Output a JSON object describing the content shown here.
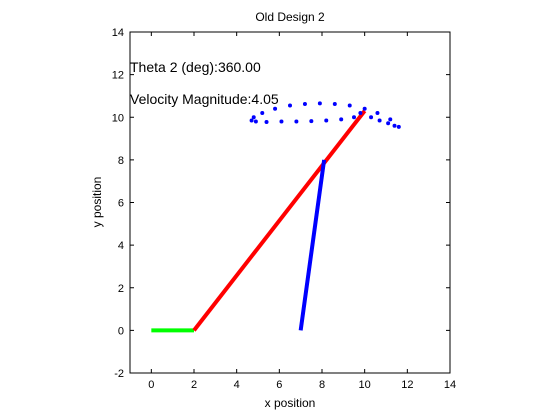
{
  "chart_data": {
    "type": "line",
    "title": "Old Design 2",
    "xlabel": "x position",
    "ylabel": "y position",
    "xlim": [
      -1,
      14
    ],
    "ylim": [
      -2,
      14
    ],
    "xticks": [
      0,
      2,
      4,
      6,
      8,
      10,
      12,
      14
    ],
    "yticks": [
      -2,
      0,
      2,
      4,
      6,
      8,
      10,
      12,
      14
    ],
    "grid": false,
    "annotations": [
      {
        "text": "Theta 2 (deg):360.00",
        "x": -1,
        "y": 12.2
      },
      {
        "text": "Velocity Magnitude:4.05",
        "x": -1,
        "y": 10.7
      }
    ],
    "series": [
      {
        "type": "line",
        "color": "#00ff00",
        "x": [
          0,
          2
        ],
        "y": [
          0,
          0
        ]
      },
      {
        "type": "line",
        "color": "#ff0000",
        "x": [
          2,
          10
        ],
        "y": [
          0,
          10.3
        ]
      },
      {
        "type": "line",
        "color": "#0000ff",
        "x": [
          7,
          8.1
        ],
        "y": [
          0,
          8
        ]
      },
      {
        "type": "scatter",
        "color": "#0000ff",
        "x": [
          9.8,
          10.3,
          10.7,
          11.1,
          11.4,
          11.6,
          11.2,
          10.6,
          10.0,
          9.3,
          8.6,
          7.9,
          7.2,
          6.5,
          5.8,
          5.2,
          4.8,
          4.7,
          4.9,
          5.4,
          6.1,
          6.8,
          7.5,
          8.2,
          8.9,
          9.5
        ],
        "y": [
          10.2,
          10.0,
          9.85,
          9.72,
          9.6,
          9.55,
          9.9,
          10.2,
          10.4,
          10.55,
          10.62,
          10.65,
          10.62,
          10.55,
          10.4,
          10.2,
          10.0,
          9.85,
          9.8,
          9.78,
          9.8,
          9.8,
          9.82,
          9.85,
          9.9,
          10.0
        ]
      }
    ]
  }
}
